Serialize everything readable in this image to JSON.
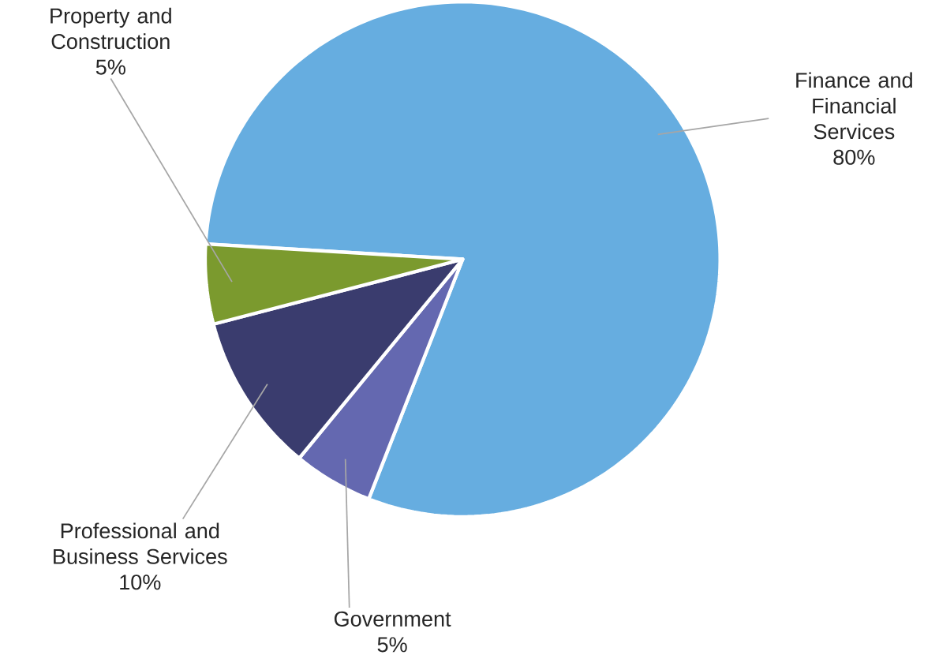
{
  "chart_data": {
    "type": "pie",
    "categories": [
      "Finance and Financial Services",
      "Government",
      "Professional and Business Services",
      "Property and Construction"
    ],
    "values": [
      80,
      5,
      10,
      5
    ],
    "value_labels": [
      "80%",
      "5%",
      "10%",
      "5%"
    ],
    "colors": [
      "#66ade0",
      "#6468b0",
      "#3a3c6e",
      "#7b9a2e"
    ]
  }
}
